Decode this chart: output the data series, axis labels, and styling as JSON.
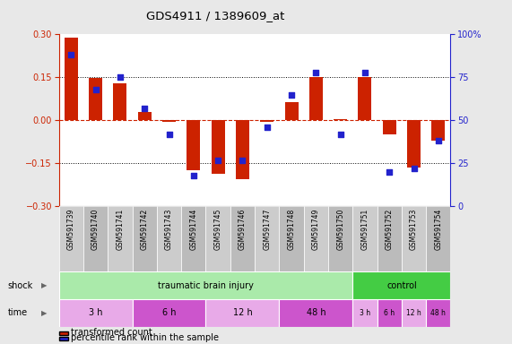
{
  "title": "GDS4911 / 1389609_at",
  "samples": [
    "GSM591739",
    "GSM591740",
    "GSM591741",
    "GSM591742",
    "GSM591743",
    "GSM591744",
    "GSM591745",
    "GSM591746",
    "GSM591747",
    "GSM591748",
    "GSM591749",
    "GSM591750",
    "GSM591751",
    "GSM591752",
    "GSM591753",
    "GSM591754"
  ],
  "transformed_count": [
    0.29,
    0.148,
    0.128,
    0.028,
    -0.005,
    -0.175,
    -0.185,
    -0.205,
    -0.005,
    0.065,
    0.152,
    0.005,
    0.152,
    -0.05,
    -0.165,
    -0.07
  ],
  "percentile_rank": [
    88,
    68,
    75,
    57,
    42,
    18,
    27,
    27,
    46,
    65,
    78,
    42,
    78,
    20,
    22,
    38
  ],
  "bar_color": "#cc2200",
  "dot_color": "#2222cc",
  "bg_plot": "#ffffff",
  "bg_figure": "#e8e8e8",
  "shock_tbi_color": "#aaeaaa",
  "shock_ctrl_color": "#44cc44",
  "time_light_color": "#e8aae8",
  "time_dark_color": "#cc55cc",
  "tbi_time_groups": [
    {
      "label": "3 h",
      "start": 0,
      "end": 3,
      "color": "#e8aae8"
    },
    {
      "label": "6 h",
      "start": 3,
      "end": 6,
      "color": "#cc55cc"
    },
    {
      "label": "12 h",
      "start": 6,
      "end": 9,
      "color": "#e8aae8"
    },
    {
      "label": "48 h",
      "start": 9,
      "end": 12,
      "color": "#cc55cc"
    }
  ],
  "ctrl_time_groups": [
    {
      "label": "3 h",
      "start": 12,
      "end": 13,
      "color": "#e8aae8"
    },
    {
      "label": "6 h",
      "start": 13,
      "end": 14,
      "color": "#cc55cc"
    },
    {
      "label": "12 h",
      "start": 14,
      "end": 15,
      "color": "#e8aae8"
    },
    {
      "label": "48 h",
      "start": 15,
      "end": 16,
      "color": "#cc55cc"
    }
  ]
}
